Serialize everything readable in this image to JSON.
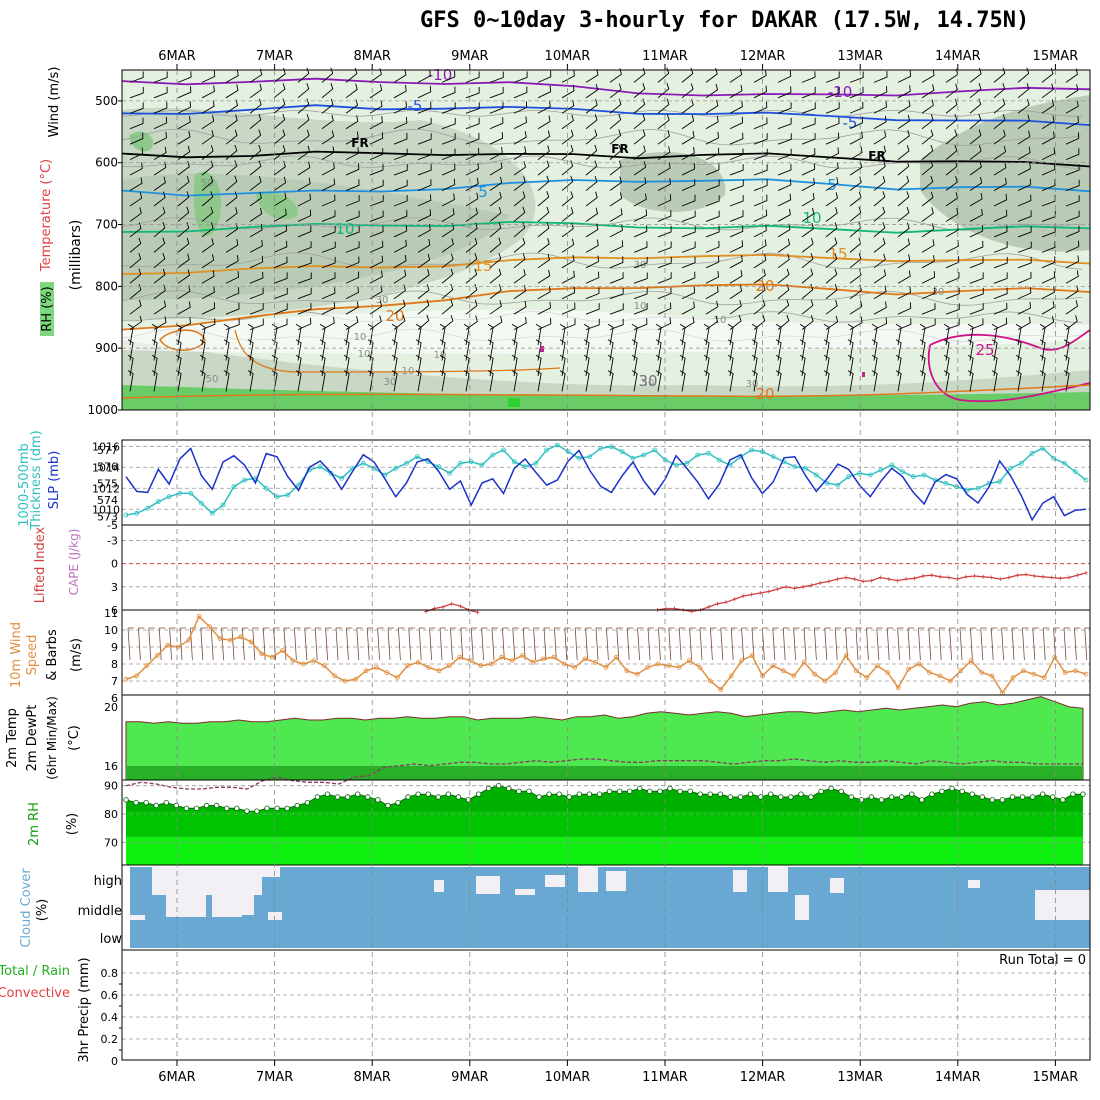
{
  "title": "GFS 0~10day 3-hourly for DAKAR (17.5W, 14.75N)",
  "dates": [
    "6MAR",
    "7MAR",
    "8MAR",
    "9MAR",
    "10MAR",
    "11MAR",
    "12MAR",
    "13MAR",
    "14MAR",
    "15MAR"
  ],
  "colors": {
    "rh_light": "#e4f0e0",
    "rh_mid": "#c8d8c4",
    "rh_dark": "#8ec88a",
    "rh_bright": "#6acc66",
    "wind_barb": "#000000",
    "slp": "#1a32c8",
    "thickness": "#30c0c0",
    "lifted": "#d04040",
    "wind10": "#e09040",
    "temp_fill": "#50e850",
    "dew_fill": "#28b028",
    "rh2m_fill": "#10a010",
    "cloud": "#6aa8d4",
    "cloud_clear": "#f2f0f4"
  },
  "chart_data": [
    {
      "type": "heatmap",
      "name_panel": "upper-air",
      "title": "",
      "ylabels": [
        "Wind (m/s)",
        "Temperature (°C)",
        "RH (%)",
        "(millibars)"
      ],
      "yticks": [
        500,
        600,
        700,
        800,
        900,
        1000
      ],
      "ylim": [
        1000,
        450
      ],
      "isotherms": [
        {
          "label": "-10",
          "pressure": [
            468,
            470,
            470,
            467,
            468,
            470,
            472,
            478,
            485,
            490,
            492,
            490,
            488,
            485,
            482,
            480
          ]
        },
        {
          "label": "-5",
          "pressure": [
            520,
            518,
            515,
            510,
            512,
            510,
            512,
            515,
            518,
            520,
            522,
            525,
            528,
            532,
            535,
            538
          ]
        },
        {
          "label": "FR",
          "pressure": [
            585,
            588,
            590,
            585,
            583,
            585,
            588,
            588,
            590,
            586,
            588,
            592,
            595,
            598,
            602,
            605
          ]
        },
        {
          "label": "5",
          "pressure": [
            645,
            650,
            650,
            648,
            645,
            640,
            635,
            630,
            628,
            628,
            630,
            635,
            640,
            640,
            642,
            645
          ]
        },
        {
          "label": "10",
          "pressure": [
            712,
            708,
            705,
            702,
            700,
            700,
            698,
            700,
            702,
            705,
            705,
            708,
            710,
            708,
            706,
            705
          ]
        },
        {
          "label": "15",
          "pressure": [
            780,
            775,
            772,
            770,
            768,
            765,
            760,
            755,
            752,
            750,
            752,
            755,
            756,
            758,
            760,
            762
          ]
        },
        {
          "label": "20",
          "pressure": [
            870,
            860,
            850,
            840,
            830,
            820,
            810,
            805,
            800,
            797,
            800,
            805,
            810,
            808,
            806,
            808
          ]
        }
      ],
      "cloud_texts": [
        "50",
        "10",
        "30",
        "30",
        "10",
        "50",
        "10",
        "10",
        "30",
        "50",
        "30",
        "10",
        "10",
        "30"
      ],
      "annotations": [
        "FR",
        "FR",
        "FR",
        "-10",
        "-10",
        "-5",
        "-5",
        "5",
        "5",
        "10",
        "10",
        "15",
        "15",
        "20",
        "20",
        "25",
        "20",
        "30"
      ]
    },
    {
      "type": "line",
      "name_panel": "slp-thickness",
      "ylabels_left": [
        "1000-500mb",
        "Thickness (dm)"
      ],
      "ylabel_right": "SLP (mb)",
      "ticks_left": [
        573,
        574,
        575,
        576,
        577
      ],
      "ticks_right": [
        1010,
        1012,
        1014,
        1016
      ],
      "series": [
        {
          "name": "SLP (mb)",
          "color": "#1a32c8",
          "values": [
            1013.1,
            1011.7,
            1011.6,
            1013.8,
            1012.4,
            1014.8,
            1015.8,
            1013.2,
            1011.9,
            1014.5,
            1015.1,
            1014.2,
            1012.5,
            1015.3,
            1015.0,
            1013.1,
            1011.8,
            1014.0,
            1014.6,
            1013.5,
            1011.9,
            1013.6,
            1015.2,
            1014.5,
            1012.9,
            1011.2,
            1012.5,
            1014.5,
            1014.8,
            1013.6,
            1011.9,
            1012.7,
            1010.4,
            1012.5,
            1012.9,
            1011.5,
            1013.9,
            1014.8,
            1013.5,
            1012.3,
            1012.8,
            1014.6,
            1015.6,
            1013.7,
            1012.2,
            1011.6,
            1013.2,
            1014.5,
            1012.7,
            1011.4,
            1012.9,
            1015.1,
            1013.9,
            1012.6,
            1011.0,
            1012.4,
            1014.7,
            1015.2,
            1013.0,
            1011.5,
            1012.6,
            1014.9,
            1015.0,
            1013.2,
            1011.7,
            1012.9,
            1014.3,
            1013.8,
            1012.3,
            1011.2,
            1012.7,
            1013.9,
            1013.1,
            1011.6,
            1010.5,
            1012.6,
            1013.3,
            1012.9,
            1011.4,
            1010.6,
            1012.1,
            1014.6,
            1013.2,
            1011.3,
            1009.0,
            1010.6,
            1011.2,
            1009.4,
            1009.9,
            1010.0
          ]
        },
        {
          "name": "1000-500mb Thickness (dm)",
          "color": "#30c0c0",
          "values": [
            573.1,
            573.2,
            573.5,
            573.9,
            574.2,
            574.4,
            574.4,
            573.8,
            573.2,
            573.7,
            574.8,
            575.2,
            575.3,
            574.7,
            574.2,
            574.3,
            574.9,
            575.8,
            576.0,
            575.6,
            575.3,
            575.9,
            576.2,
            575.9,
            575.5,
            575.9,
            576.2,
            576.6,
            576.3,
            576.0,
            575.6,
            576.2,
            576.3,
            576.1,
            576.7,
            577.0,
            576.3,
            576.0,
            576.2,
            577.0,
            577.3,
            576.9,
            576.5,
            576.6,
            577.1,
            577.2,
            576.9,
            576.5,
            576.7,
            577.0,
            576.4,
            576.1,
            576.2,
            576.7,
            576.8,
            576.4,
            576.1,
            576.6,
            577.0,
            576.9,
            576.6,
            576.3,
            576.0,
            575.9,
            575.5,
            575.0,
            574.9,
            575.4,
            575.6,
            575.5,
            575.8,
            576.1,
            575.7,
            575.4,
            575.5,
            575.2,
            575.0,
            574.8,
            574.6,
            574.7,
            575.0,
            575.1,
            575.9,
            576.2,
            576.8,
            577.1,
            576.5,
            576.2,
            575.7,
            575.2
          ]
        }
      ]
    },
    {
      "type": "line",
      "name_panel": "lifted-index",
      "ylabels": [
        "Lifted Index",
        "CAPE (J/kg)"
      ],
      "yticks": [
        "-5",
        "-3",
        "0",
        "3",
        "6"
      ],
      "ylim": [
        -5,
        6
      ],
      "series": [
        {
          "name": "Lifted Index",
          "color": "#d04040",
          "values": [
            6.5,
            6.5,
            6.5,
            6.5,
            6.5,
            6.5,
            6.5,
            6.5,
            6.5,
            6.5,
            6.5,
            6.5,
            6.5,
            6.5,
            6.5,
            6.5,
            6.5,
            6.5,
            6.5,
            6.5,
            6.5,
            6.5,
            6.5,
            6.5,
            6.5,
            6.5,
            6.5,
            6.5,
            6.5,
            6.5,
            6.5,
            6.5,
            6.5,
            6.5,
            6.5,
            6.2,
            5.8,
            5.6,
            5.2,
            5.5,
            6.0,
            6.3,
            6.5,
            6.5,
            6.5,
            6.5,
            6.5,
            6.5,
            6.5,
            6.5,
            6.5,
            6.5,
            6.5,
            6.5,
            6.5,
            6.5,
            6.5,
            6.5,
            6.5,
            6.5,
            6.5,
            6.4,
            6.0,
            5.8,
            5.8,
            6.0,
            6.2,
            6.0,
            5.6,
            5.2,
            5.0,
            4.6,
            4.2,
            4.0,
            3.8,
            3.6,
            3.3,
            3.0,
            3.2,
            3.0,
            2.8,
            2.5,
            2.3,
            2.0,
            1.8,
            2.0,
            2.3,
            2.2,
            1.8,
            2.0,
            2.2,
            2.0,
            1.9,
            1.6,
            1.5,
            1.7,
            1.8,
            2.0,
            1.7,
            1.6,
            1.7,
            1.8,
            2.0,
            1.8,
            1.5,
            1.4,
            1.6,
            1.7,
            1.8,
            1.9,
            1.8,
            1.5,
            1.2
          ]
        }
      ]
    },
    {
      "type": "line",
      "name_panel": "wind10m",
      "ylabels": [
        "10m Wind",
        "Speed",
        "& Barbs",
        "(m/s)"
      ],
      "yticks": [
        6,
        7,
        8,
        9,
        10,
        11
      ],
      "ylim": [
        6,
        11
      ],
      "series": [
        {
          "name": "10m Wind Speed",
          "color": "#e09040",
          "values": [
            7.1,
            7.3,
            7.9,
            8.5,
            9.1,
            9.0,
            9.4,
            10.8,
            10.2,
            9.5,
            9.4,
            9.6,
            9.3,
            8.6,
            8.4,
            8.8,
            8.2,
            8.0,
            8.2,
            7.9,
            7.3,
            7.0,
            7.1,
            7.6,
            7.8,
            7.5,
            7.2,
            7.9,
            8.1,
            7.8,
            7.6,
            7.9,
            8.4,
            8.2,
            7.9,
            8.0,
            8.4,
            8.2,
            8.5,
            8.1,
            8.3,
            8.4,
            8.0,
            7.8,
            8.3,
            8.1,
            7.8,
            8.4,
            7.6,
            7.4,
            7.8,
            8.0,
            7.9,
            7.8,
            8.2,
            7.8,
            7.0,
            6.5,
            7.3,
            8.2,
            8.5,
            7.3,
            7.9,
            7.6,
            7.3,
            8.1,
            7.4,
            7.0,
            7.5,
            8.5,
            7.6,
            7.2,
            7.9,
            7.5,
            6.6,
            7.7,
            8.0,
            7.5,
            7.3,
            7.0,
            7.6,
            8.2,
            7.5,
            7.3,
            6.3,
            7.2,
            7.6,
            7.4,
            7.2,
            8.4,
            7.5,
            7.6,
            7.4
          ]
        }
      ]
    },
    {
      "type": "area",
      "name_panel": "temp2m",
      "ylabels": [
        "2m Temp",
        "2m DewPt",
        "(6hr Min/Max)",
        "(°C)"
      ],
      "yticks": [
        16,
        20
      ],
      "ylim": [
        15.5,
        20.5
      ],
      "series": [
        {
          "name": "2m Temp",
          "color": "#50e850",
          "values": [
            19.0,
            19.0,
            18.9,
            19.0,
            18.9,
            18.9,
            19.0,
            19.0,
            19.1,
            19.0,
            19.0,
            19.1,
            19.2,
            19.1,
            19.1,
            19.2,
            19.2,
            19.1,
            19.2,
            19.2,
            19.3,
            19.2,
            19.2,
            19.3,
            19.3,
            19.1,
            19.2,
            19.2,
            19.2,
            19.3,
            19.2,
            19.1,
            19.3,
            19.3,
            19.4,
            19.2,
            19.3,
            19.5,
            19.6,
            19.5,
            19.4,
            19.5,
            19.6,
            19.5,
            19.3,
            19.4,
            19.5,
            19.6,
            19.6,
            19.5,
            19.6,
            19.7,
            19.6,
            19.7,
            19.8,
            19.7,
            19.8,
            19.9,
            20.0,
            19.9,
            20.1,
            20.2,
            20.0,
            20.1,
            20.3,
            20.5,
            20.2,
            19.9,
            19.8
          ]
        },
        {
          "name": "2m DewPt",
          "color": "#8b3a62",
          "values": [
            16.0,
            16.2,
            16.1,
            15.9,
            15.8,
            15.8,
            15.9,
            15.9,
            15.8,
            16.3,
            16.5,
            16.3,
            16.2,
            16.2,
            16.1,
            16.5,
            16.6,
            17.1,
            17.2,
            17.3,
            17.2,
            17.3,
            17.4,
            17.4,
            17.3,
            17.3,
            17.4,
            17.5,
            17.4,
            17.5,
            17.6,
            17.6,
            17.5,
            17.4,
            17.4,
            17.5,
            17.5,
            17.5,
            17.5,
            17.4,
            17.3,
            17.4,
            17.5,
            17.5,
            17.6,
            17.5,
            17.4,
            17.5,
            17.4,
            17.4,
            17.5,
            17.4,
            17.3,
            17.5,
            17.4,
            17.3,
            17.4,
            17.5,
            17.4,
            17.4,
            17.3,
            17.3,
            17.3,
            17.3
          ]
        }
      ]
    },
    {
      "type": "area",
      "name_panel": "rh2m",
      "ylabels": [
        "2m RH",
        "(%)"
      ],
      "yticks": [
        70,
        80,
        90
      ],
      "ylim": [
        62,
        92
      ],
      "series": [
        {
          "name": "2m RH",
          "color": "#10a010",
          "values": [
            85,
            84,
            84,
            83,
            84,
            83,
            82,
            82,
            83,
            83,
            82,
            82,
            81,
            81,
            82,
            82,
            82,
            83,
            84,
            86,
            87,
            86,
            86,
            87,
            86,
            85,
            83,
            84,
            86,
            87,
            87,
            86,
            87,
            86,
            85,
            87,
            89,
            90,
            89,
            88,
            88,
            86,
            87,
            87,
            86,
            87,
            87,
            87,
            88,
            88,
            88,
            89,
            88,
            88,
            89,
            88,
            88,
            87,
            87,
            87,
            86,
            86,
            87,
            86,
            87,
            86,
            86,
            87,
            86,
            88,
            89,
            88,
            86,
            85,
            86,
            85,
            86,
            86,
            87,
            85,
            87,
            88,
            89,
            88,
            87,
            86,
            85,
            85,
            86,
            86,
            86,
            87,
            86,
            85,
            87,
            87
          ]
        }
      ]
    },
    {
      "type": "heatmap",
      "name_panel": "cloud-cover",
      "ylabels": [
        "Cloud Cover",
        "(%)"
      ],
      "levels": [
        "high",
        "middle",
        "low"
      ]
    },
    {
      "type": "bar",
      "name_panel": "precip",
      "ylabels": [
        "3hr Precip (mm)",
        "Total / Rain",
        "Convective"
      ],
      "yticks": [
        "0",
        "0.2",
        "0.4",
        "0.6",
        "0.8"
      ],
      "ylim": [
        0,
        1
      ],
      "run_total": "Run Total = 0"
    }
  ]
}
